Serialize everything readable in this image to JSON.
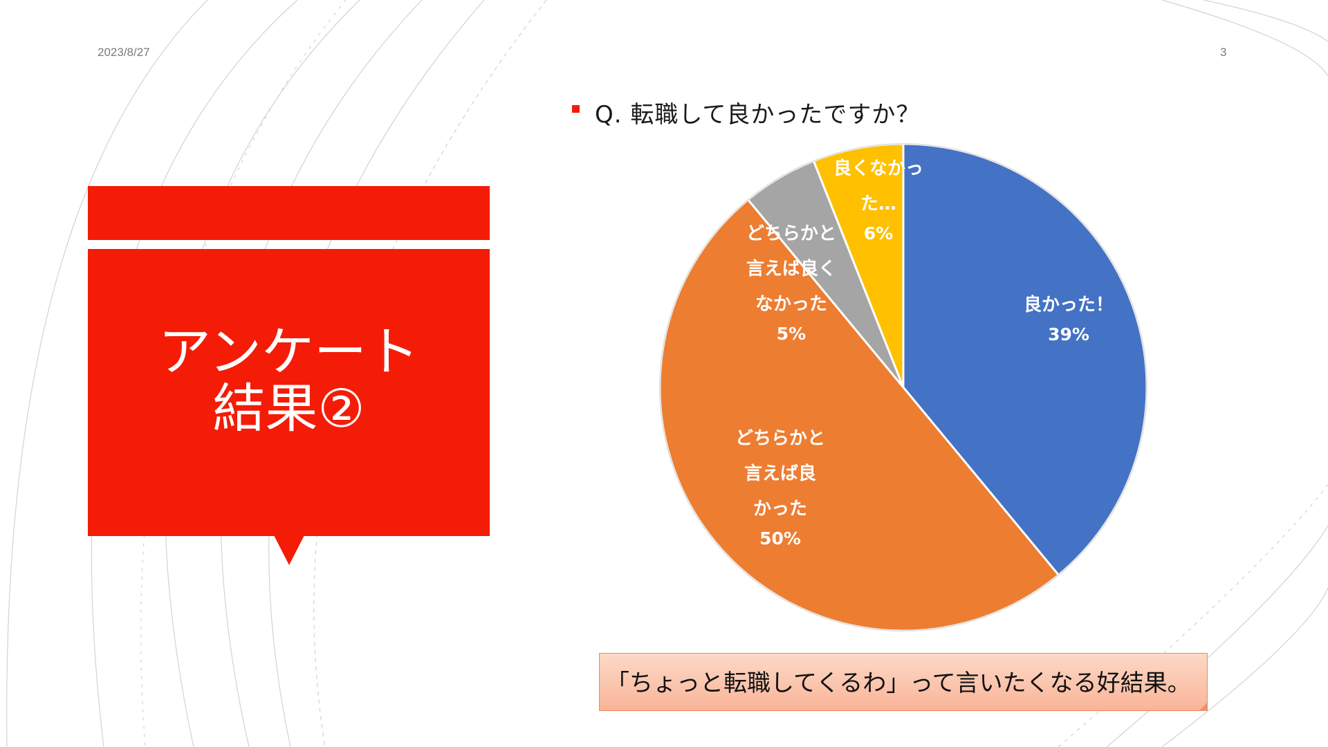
{
  "header": {
    "date": "2023/8/27",
    "page_number": "3"
  },
  "title": {
    "line1": "アンケート",
    "line2": "結果②"
  },
  "question": "Q.  転職して良かったですか？",
  "callout": "「ちょっと転職してくるわ」って言いたくなる好結果。",
  "colors": {
    "accent": "#f41c07",
    "blue": "#4472c4",
    "orange": "#ed7d31",
    "gray": "#a5a5a5",
    "yellow": "#ffc000"
  },
  "chart_data": {
    "type": "pie",
    "title": "",
    "slices": [
      {
        "name": "良かった！",
        "label_lines": [
          "良かった！"
        ],
        "pct_label": "39%",
        "value": 39,
        "color": "#4472c4"
      },
      {
        "name": "どちらかと言えば良かった",
        "label_lines": [
          "どちらかと",
          "言えば良",
          "かった"
        ],
        "pct_label": "50%",
        "value": 50,
        "color": "#ed7d31"
      },
      {
        "name": "どちらかと言えば良くなかった",
        "label_lines": [
          "どちらかと",
          "言えば良く",
          "なかった"
        ],
        "pct_label": "5%",
        "value": 5,
        "color": "#a5a5a5"
      },
      {
        "name": "良くなかった…",
        "label_lines": [
          "良くなかっ",
          "た…"
        ],
        "pct_label": "6%",
        "value": 6,
        "color": "#ffc000"
      }
    ]
  }
}
